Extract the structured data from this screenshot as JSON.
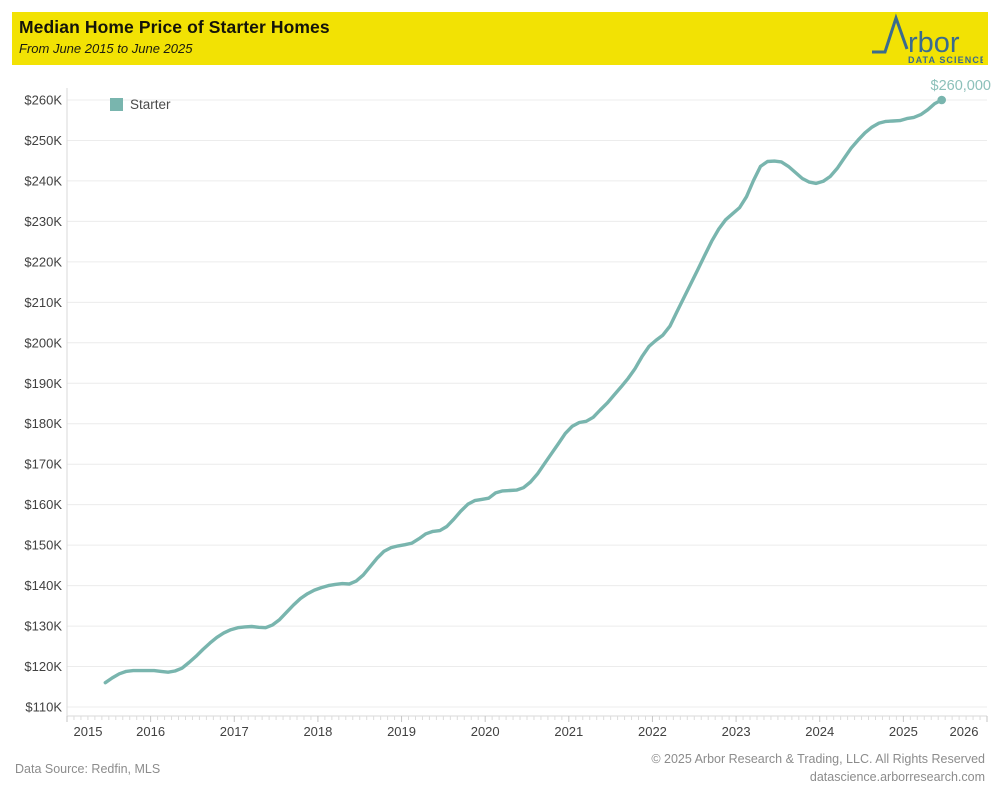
{
  "header": {
    "title": "Median Home Price of Starter Homes",
    "subtitle": "From June 2015 to June 2025",
    "background_color": "#F2E204",
    "logo": {
      "brand": "rbor",
      "tagline": "DATA SCIENCE",
      "color": "#3A6B8E"
    }
  },
  "legend": {
    "label": "Starter",
    "swatch_color": "#79B5AE"
  },
  "annotation": {
    "label": "$260,000",
    "color": "#8CC0BA"
  },
  "footer": {
    "source": "Data Source: Redfin, MLS",
    "copyright": "© 2025 Arbor Research & Trading, LLC. All Rights Reserved",
    "website": "datascience.arborresearch.com"
  },
  "chart_data": {
    "type": "line",
    "title": "Median Home Price of Starter Homes",
    "series_name": "Starter",
    "unit": "USD thousands",
    "frequency": "monthly",
    "start_month": "2015-06",
    "end_month": "2025-06",
    "line_color": "#79B5AE",
    "grid": "horizontal",
    "legend_position": "top-left",
    "ylim": [
      110,
      260
    ],
    "y_tick_values": [
      110,
      120,
      130,
      140,
      150,
      160,
      170,
      180,
      190,
      200,
      210,
      220,
      230,
      240,
      250,
      260
    ],
    "y_tick_format": "$<v>K",
    "x_tick_labels": [
      "2015",
      "2016",
      "2017",
      "2018",
      "2019",
      "2020",
      "2021",
      "2022",
      "2023",
      "2024",
      "2025",
      "2026"
    ],
    "last_value_label": "$260,000",
    "values": [
      116.0,
      117.2,
      118.2,
      118.8,
      119.0,
      119.0,
      119.0,
      119.0,
      118.8,
      118.6,
      118.9,
      119.6,
      121.0,
      122.5,
      124.2,
      125.8,
      127.2,
      128.3,
      129.1,
      129.6,
      129.8,
      129.9,
      129.7,
      129.6,
      130.3,
      131.6,
      133.4,
      135.2,
      136.8,
      138.0,
      138.9,
      139.5,
      140.0,
      140.3,
      140.5,
      140.4,
      141.1,
      142.6,
      144.7,
      146.8,
      148.5,
      149.4,
      149.8,
      150.1,
      150.5,
      151.6,
      152.8,
      153.4,
      153.6,
      154.6,
      156.4,
      158.4,
      160.1,
      161.0,
      161.3,
      161.6,
      162.9,
      163.4,
      163.5,
      163.6,
      164.2,
      165.6,
      167.6,
      170.1,
      172.6,
      175.1,
      177.6,
      179.4,
      180.3,
      180.6,
      181.6,
      183.4,
      185.1,
      187.1,
      189.1,
      191.2,
      193.6,
      196.6,
      199.1,
      200.6,
      201.9,
      204.1,
      207.6,
      211.1,
      214.6,
      218.1,
      221.6,
      225.1,
      228.1,
      230.4,
      231.9,
      233.4,
      236.1,
      240.1,
      243.6,
      244.8,
      244.9,
      244.7,
      243.6,
      242.1,
      240.6,
      239.7,
      239.4,
      239.9,
      241.1,
      243.1,
      245.6,
      248.1,
      250.1,
      251.9,
      253.3,
      254.3,
      254.7,
      254.8,
      254.9,
      255.4,
      255.7,
      256.4,
      257.6,
      259.1,
      260.0
    ]
  }
}
